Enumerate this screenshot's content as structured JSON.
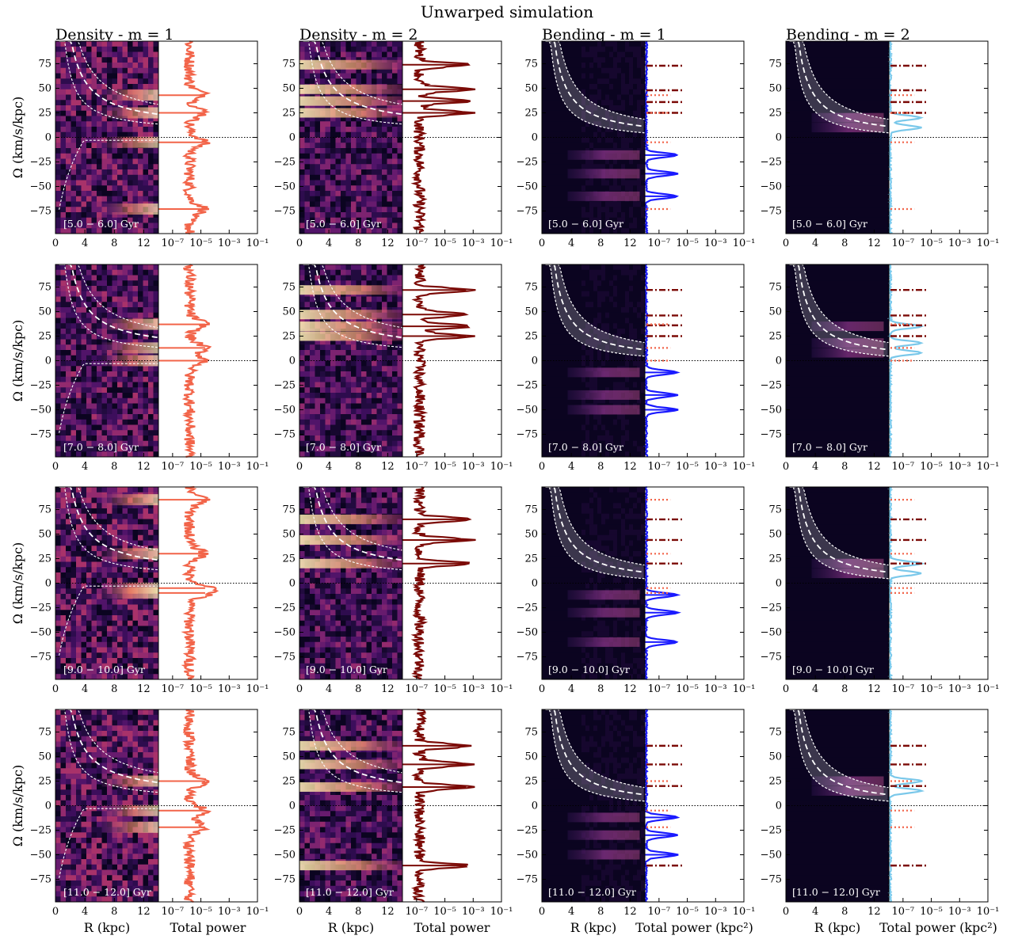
{
  "figure": {
    "title": "Unwarped simulation",
    "columns": [
      {
        "title": "Density - m = 1",
        "kind": "density",
        "m": 1,
        "line_color": "#f26449",
        "power_xlabel": "Total power"
      },
      {
        "title": "Density - m = 2",
        "kind": "density",
        "m": 2,
        "line_color": "#7b0a06",
        "power_xlabel": "Total power"
      },
      {
        "title": "Bending - m = 1",
        "kind": "bending",
        "m": 1,
        "line_color": "#1a1aff",
        "power_xlabel": "Total power (kpc²)"
      },
      {
        "title": "Bending - m = 2",
        "kind": "bending",
        "m": 2,
        "line_color": "#7ac8ea",
        "power_xlabel": "Total power (kpc²)"
      }
    ],
    "rows": [
      {
        "label": "[5.0 − 6.0] Gyr"
      },
      {
        "label": "[7.0 − 8.0] Gyr"
      },
      {
        "label": "[9.0 − 10.0] Gyr"
      },
      {
        "label": "[11.0 − 12.0] Gyr"
      }
    ],
    "ylabel": "Ω (km/s/kpc)",
    "xlabel_map": "R (kpc)"
  },
  "chart_data": {
    "type": "heatmap",
    "map_x": {
      "ticks": [
        0,
        4,
        8,
        12
      ],
      "range": [
        0,
        14
      ]
    },
    "map_y": {
      "ticks": [
        75,
        50,
        25,
        0,
        -25,
        -50,
        -75
      ],
      "range": [
        -98,
        98
      ]
    },
    "power_x": {
      "scale": "log",
      "ticks": [
        "10⁻⁷",
        "10⁻⁵",
        "10⁻³",
        "10⁻¹"
      ],
      "range_exp": [
        -8,
        -1
      ]
    },
    "peaks": {
      "density_m1": [
        [
          43,
          25,
          -5,
          -73
        ],
        [
          37,
          13,
          0
        ],
        [
          85,
          30,
          -5,
          -10
        ],
        [
          25,
          -5,
          -22
        ]
      ],
      "density_m2": [
        [
          74,
          49,
          37,
          25
        ],
        [
          72,
          47,
          35,
          25
        ],
        [
          65,
          44,
          20
        ],
        [
          61,
          42,
          19,
          -61
        ]
      ],
      "bending_m1": [
        [
          -18,
          -37,
          -60
        ],
        [
          -12,
          -35,
          -50
        ],
        [
          -12,
          -30,
          -60
        ],
        [
          -12,
          -30,
          -50
        ]
      ],
      "bending_m2": [
        [
          20,
          10
        ],
        [
          35,
          18,
          8
        ],
        [
          20,
          10
        ],
        [
          15,
          25
        ]
      ]
    },
    "reference_marks": {
      "dashdot": [
        [
          73,
          48,
          36,
          25
        ],
        [
          72,
          46,
          36,
          25
        ],
        [
          65,
          44,
          20
        ],
        [
          61,
          42,
          20,
          -61
        ]
      ],
      "dotted": [
        [
          43,
          25,
          -5,
          -73
        ],
        [
          37,
          13,
          0
        ],
        [
          85,
          30,
          -5,
          -10
        ],
        [
          25,
          -5,
          -22
        ]
      ]
    }
  }
}
